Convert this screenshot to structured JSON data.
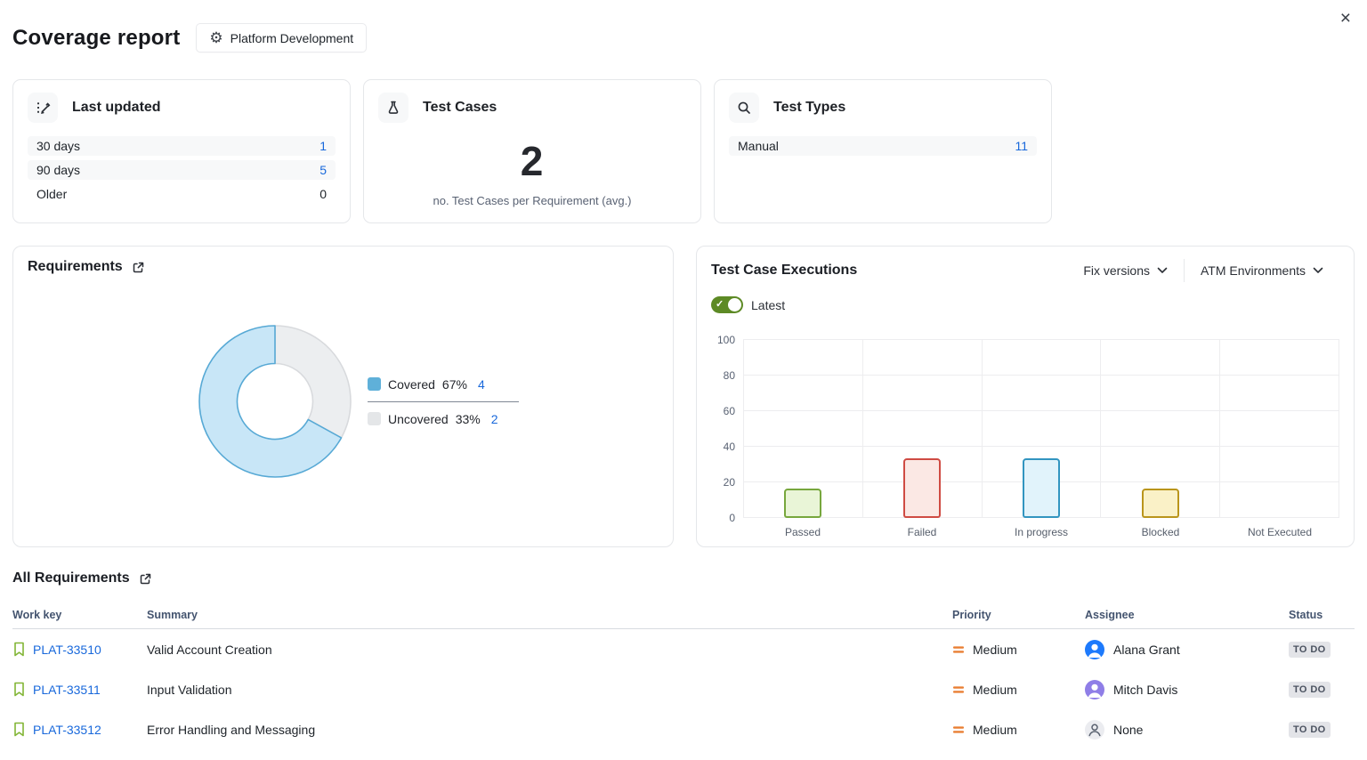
{
  "header": {
    "title": "Coverage report",
    "project_button": {
      "label": "Platform Development"
    },
    "close_glyph": "×"
  },
  "stat_cards": {
    "last_updated": {
      "title": "Last updated",
      "rows": [
        {
          "label": "30 days",
          "value": "1"
        },
        {
          "label": "90 days",
          "value": "5"
        },
        {
          "label": "Older",
          "value": "0"
        }
      ]
    },
    "test_cases": {
      "title": "Test Cases",
      "big_value": "2",
      "caption": "no. Test Cases per Requirement (avg.)"
    },
    "test_types": {
      "title": "Test Types",
      "rows": [
        {
          "label": "Manual",
          "value": "11"
        }
      ]
    }
  },
  "requirements_panel": {
    "title": "Requirements",
    "chart_data": {
      "type": "pie",
      "slices": [
        {
          "label": "Covered",
          "percent": 67,
          "percent_label": "67%",
          "count": "4",
          "fill": "#c8e6f7",
          "stroke": "#57a9d5",
          "swatch": "#5fb0d9"
        },
        {
          "label": "Uncovered",
          "percent": 33,
          "percent_label": "33%",
          "count": "2",
          "fill": "#eceef0",
          "stroke": "#d8dadd",
          "swatch": "#e4e6e8"
        }
      ],
      "legend_position": "right",
      "donut": true
    }
  },
  "executions_panel": {
    "title": "Test Case Executions",
    "filters": [
      {
        "label": "Fix versions"
      },
      {
        "label": "ATM Environments"
      }
    ],
    "toggle": {
      "label": "Latest",
      "state": "on",
      "color": "#5d8a25"
    },
    "chart_data": {
      "type": "bar",
      "categories": [
        "Passed",
        "Failed",
        "In progress",
        "Blocked",
        "Not Executed"
      ],
      "values": [
        16.7,
        33.3,
        33.3,
        16.7,
        0
      ],
      "ylim": [
        0,
        100
      ],
      "ytick_step": 20,
      "grid": true,
      "colors": [
        {
          "fill": "#e9f5d7",
          "border": "#77a73d"
        },
        {
          "fill": "#fbe8e4",
          "border": "#cf4b43"
        },
        {
          "fill": "#e1f3fb",
          "border": "#3295c0"
        },
        {
          "fill": "#faf1c7",
          "border": "#ba951b"
        },
        {
          "fill": "transparent",
          "border": "transparent"
        }
      ]
    }
  },
  "all_requirements": {
    "title": "All Requirements",
    "columns": [
      "Work key",
      "Summary",
      "Priority",
      "Assignee",
      "Status"
    ],
    "rows": [
      {
        "work_key": "PLAT-33510",
        "summary": "Valid Account Creation",
        "priority": "Medium",
        "assignee": "Alana Grant",
        "assignee_color": "#1d7afc",
        "status": "TO DO"
      },
      {
        "work_key": "PLAT-33511",
        "summary": "Input Validation",
        "priority": "Medium",
        "assignee": "Mitch Davis",
        "assignee_color": "#8f7ee7",
        "status": "TO DO"
      },
      {
        "work_key": "PLAT-33512",
        "summary": "Error Handling and Messaging",
        "priority": "Medium",
        "assignee": "None",
        "assignee_color": "#ebecf0",
        "status": "TO DO"
      }
    ]
  }
}
